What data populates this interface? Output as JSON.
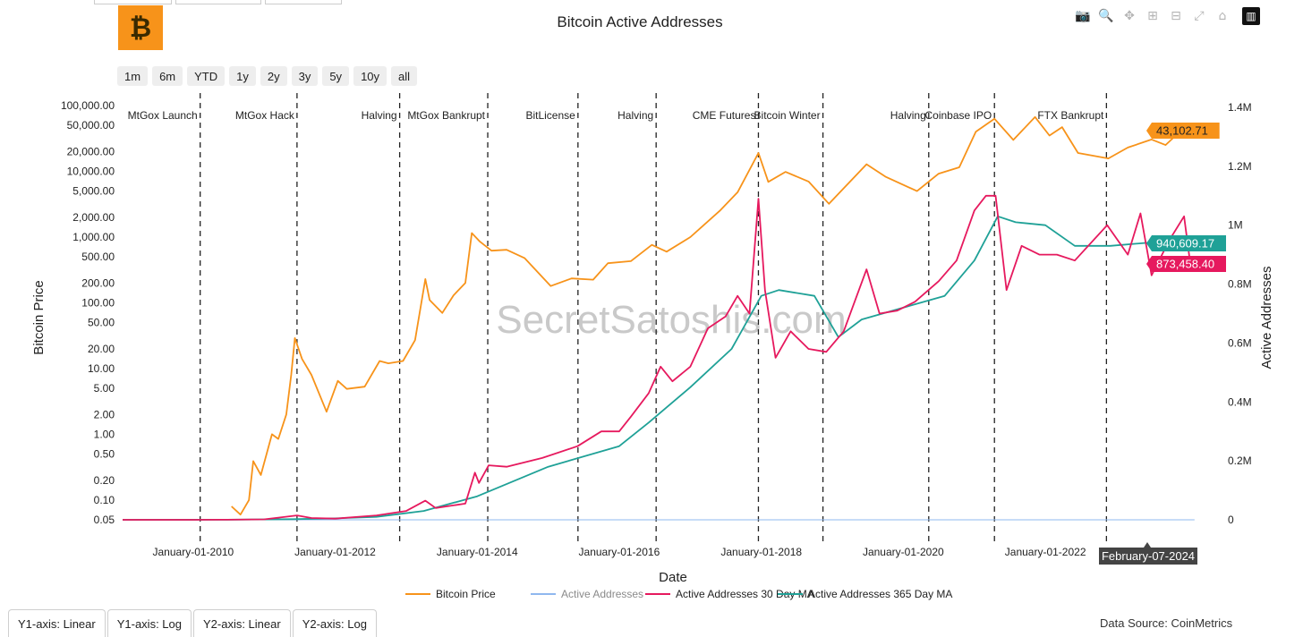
{
  "title": "Bitcoin Active Addresses",
  "logo_glyph": "₿",
  "modebar": {
    "icons": [
      "camera-icon",
      "zoom-icon",
      "pan-icon",
      "zoom-in-icon",
      "zoom-out-icon",
      "autoscale-icon",
      "home-icon",
      "plotly-logo-icon"
    ],
    "glyphs": [
      "📷",
      "🔍",
      "✥",
      "⊞",
      "⊟",
      "⤢",
      "⌂",
      "▥"
    ]
  },
  "range_buttons": [
    "1m",
    "6m",
    "YTD",
    "1y",
    "2y",
    "3y",
    "5y",
    "10y",
    "all"
  ],
  "axis_buttons": [
    "Y1-axis: Linear",
    "Y1-axis: Log",
    "Y2-axis: Linear",
    "Y2-axis: Log"
  ],
  "source": "Data Source: CoinMetrics",
  "watermark": "SecretSatoshis.com",
  "colors": {
    "price": "#f7931a",
    "active": "#8fb8ef",
    "ma30": "#e6195e",
    "ma365": "#1fa197"
  },
  "chart_data": {
    "type": "line",
    "xlabel": "Date",
    "ylabel": "Bitcoin Price",
    "y2label": "Active Addresses",
    "x_range": [
      "2009-01-03",
      "2024-03-25"
    ],
    "y_scale": "log",
    "y_range": [
      0.05,
      100000
    ],
    "y2_range": [
      0,
      1400000
    ],
    "x_ticks": [
      {
        "date": "2010-01-01",
        "label": "January-01-2010"
      },
      {
        "date": "2012-01-01",
        "label": "January-01-2012"
      },
      {
        "date": "2014-01-01",
        "label": "January-01-2014"
      },
      {
        "date": "2016-01-01",
        "label": "January-01-2016"
      },
      {
        "date": "2018-01-01",
        "label": "January-01-2018"
      },
      {
        "date": "2020-01-01",
        "label": "January-01-2020"
      },
      {
        "date": "2022-01-01",
        "label": "January-01-2022"
      }
    ],
    "y_ticks": [
      {
        "value": 100000,
        "label": "100,000.00"
      },
      {
        "value": 50000,
        "label": "50,000.00"
      },
      {
        "value": 20000,
        "label": "20,000.00"
      },
      {
        "value": 10000,
        "label": "10,000.00"
      },
      {
        "value": 5000,
        "label": "5,000.00"
      },
      {
        "value": 2000,
        "label": "2,000.00"
      },
      {
        "value": 1000,
        "label": "1,000.00"
      },
      {
        "value": 500,
        "label": "500.00"
      },
      {
        "value": 200,
        "label": "200.00"
      },
      {
        "value": 100,
        "label": "100.00"
      },
      {
        "value": 50,
        "label": "50.00"
      },
      {
        "value": 20,
        "label": "20.00"
      },
      {
        "value": 10,
        "label": "10.00"
      },
      {
        "value": 5,
        "label": "5.00"
      },
      {
        "value": 2,
        "label": "2.00"
      },
      {
        "value": 1,
        "label": "1.00"
      },
      {
        "value": 0.5,
        "label": "0.50"
      },
      {
        "value": 0.2,
        "label": "0.20"
      },
      {
        "value": 0.1,
        "label": "0.10"
      },
      {
        "value": 0.05,
        "label": "0.05"
      }
    ],
    "y2_ticks": [
      {
        "value": 1400000,
        "label": "1.4M"
      },
      {
        "value": 1200000,
        "label": "1.2M"
      },
      {
        "value": 1000000,
        "label": "1M"
      },
      {
        "value": 800000,
        "label": "0.8M"
      },
      {
        "value": 600000,
        "label": "0.6M"
      },
      {
        "value": 400000,
        "label": "0.4M"
      },
      {
        "value": 200000,
        "label": "0.2M"
      },
      {
        "value": 0,
        "label": "0"
      }
    ],
    "events": [
      {
        "date": "2010-02-06",
        "label": "MtGox Launch"
      },
      {
        "date": "2011-06-19",
        "label": "MtGox Hack"
      },
      {
        "date": "2012-11-28",
        "label": "Halving"
      },
      {
        "date": "2014-02-24",
        "label": "MtGox Bankrupt"
      },
      {
        "date": "2015-06-03",
        "label": "BitLicense"
      },
      {
        "date": "2016-07-09",
        "label": "Halving"
      },
      {
        "date": "2017-12-17",
        "label": "CME Futures"
      },
      {
        "date": "2018-11-14",
        "label": "Bitcoin Winter"
      },
      {
        "date": "2020-05-11",
        "label": "Halving"
      },
      {
        "date": "2021-04-14",
        "label": "Coinbase IPO"
      },
      {
        "date": "2022-11-11",
        "label": "FTX Bankrupt"
      }
    ],
    "hover_date_label": "February-07-2024",
    "last_value_labels": {
      "price": "43,102.71",
      "ma365": "940,609.17",
      "ma30": "873,458.40"
    },
    "legend_position": "bottom",
    "series": [
      {
        "name": "Bitcoin Price",
        "key": "price",
        "axis": "y",
        "points": [
          [
            "2010-07-17",
            0.08
          ],
          [
            "2010-09-01",
            0.06
          ],
          [
            "2010-10-15",
            0.1
          ],
          [
            "2010-11-06",
            0.39
          ],
          [
            "2010-12-15",
            0.24
          ],
          [
            "2011-02-10",
            1.0
          ],
          [
            "2011-03-15",
            0.85
          ],
          [
            "2011-04-25",
            2.0
          ],
          [
            "2011-05-20",
            8.0
          ],
          [
            "2011-06-08",
            29.0
          ],
          [
            "2011-07-15",
            14.0
          ],
          [
            "2011-09-01",
            8.0
          ],
          [
            "2011-11-18",
            2.2
          ],
          [
            "2012-01-15",
            6.5
          ],
          [
            "2012-03-01",
            4.9
          ],
          [
            "2012-06-01",
            5.3
          ],
          [
            "2012-08-17",
            13.0
          ],
          [
            "2012-10-01",
            12.0
          ],
          [
            "2012-12-15",
            13.0
          ],
          [
            "2013-02-15",
            27.0
          ],
          [
            "2013-04-09",
            230.0
          ],
          [
            "2013-05-01",
            110.0
          ],
          [
            "2013-07-05",
            70.0
          ],
          [
            "2013-09-01",
            130.0
          ],
          [
            "2013-11-01",
            200.0
          ],
          [
            "2013-12-04",
            1150.0
          ],
          [
            "2014-01-15",
            850.0
          ],
          [
            "2014-03-15",
            620.0
          ],
          [
            "2014-06-01",
            640.0
          ],
          [
            "2014-09-01",
            480.0
          ],
          [
            "2015-01-14",
            180.0
          ],
          [
            "2015-05-01",
            235.0
          ],
          [
            "2015-08-20",
            225.0
          ],
          [
            "2015-11-04",
            400.0
          ],
          [
            "2016-03-01",
            430.0
          ],
          [
            "2016-06-17",
            760.0
          ],
          [
            "2016-09-01",
            600.0
          ],
          [
            "2017-01-01",
            1000.0
          ],
          [
            "2017-06-01",
            2500.0
          ],
          [
            "2017-09-01",
            4800.0
          ],
          [
            "2017-12-17",
            19000.0
          ],
          [
            "2018-02-06",
            6900.0
          ],
          [
            "2018-05-05",
            9800.0
          ],
          [
            "2018-09-01",
            7000.0
          ],
          [
            "2018-12-15",
            3200.0
          ],
          [
            "2019-06-26",
            12800.0
          ],
          [
            "2019-10-01",
            8300.0
          ],
          [
            "2020-03-12",
            5000.0
          ],
          [
            "2020-07-01",
            9200.0
          ],
          [
            "2020-10-15",
            11500.0
          ],
          [
            "2021-01-08",
            40000.0
          ],
          [
            "2021-04-14",
            63000.0
          ],
          [
            "2021-07-20",
            30000.0
          ],
          [
            "2021-11-09",
            67000.0
          ],
          [
            "2022-01-22",
            35000.0
          ],
          [
            "2022-03-28",
            47000.0
          ],
          [
            "2022-06-18",
            19000.0
          ],
          [
            "2022-11-21",
            15700.0
          ],
          [
            "2023-03-01",
            23000.0
          ],
          [
            "2023-07-01",
            30500.0
          ],
          [
            "2023-09-11",
            25100.0
          ],
          [
            "2023-12-05",
            43000.0
          ],
          [
            "2024-02-07",
            43102.71
          ]
        ]
      },
      {
        "name": "Active Addresses",
        "key": "active",
        "axis": "y2",
        "points": [
          [
            "2009-01-03",
            0
          ],
          [
            "2024-02-07",
            0
          ]
        ]
      },
      {
        "name": "Active Addresses 30 Day MA",
        "key": "ma30",
        "axis": "y2",
        "points": [
          [
            "2009-01-03",
            0
          ],
          [
            "2010-01-01",
            0
          ],
          [
            "2010-06-01",
            200
          ],
          [
            "2011-01-01",
            1500
          ],
          [
            "2011-06-19",
            15000
          ],
          [
            "2011-09-01",
            6000
          ],
          [
            "2012-01-01",
            4000
          ],
          [
            "2012-08-01",
            15000
          ],
          [
            "2013-01-01",
            30000
          ],
          [
            "2013-04-09",
            65000
          ],
          [
            "2013-06-01",
            40000
          ],
          [
            "2013-11-01",
            55000
          ],
          [
            "2013-12-20",
            160000
          ],
          [
            "2014-01-10",
            125000
          ],
          [
            "2014-03-01",
            185000
          ],
          [
            "2014-06-01",
            180000
          ],
          [
            "2014-12-01",
            210000
          ],
          [
            "2015-06-01",
            250000
          ],
          [
            "2015-10-01",
            300000
          ],
          [
            "2016-01-01",
            300000
          ],
          [
            "2016-03-01",
            350000
          ],
          [
            "2016-06-01",
            430000
          ],
          [
            "2016-08-01",
            520000
          ],
          [
            "2016-10-01",
            470000
          ],
          [
            "2017-01-01",
            520000
          ],
          [
            "2017-04-01",
            650000
          ],
          [
            "2017-07-01",
            690000
          ],
          [
            "2017-09-01",
            760000
          ],
          [
            "2017-11-01",
            700000
          ],
          [
            "2017-12-17",
            1090000
          ],
          [
            "2018-01-20",
            780000
          ],
          [
            "2018-03-15",
            550000
          ],
          [
            "2018-06-01",
            640000
          ],
          [
            "2018-09-01",
            580000
          ],
          [
            "2018-12-01",
            570000
          ],
          [
            "2019-03-01",
            640000
          ],
          [
            "2019-06-26",
            850000
          ],
          [
            "2019-09-01",
            700000
          ],
          [
            "2019-12-01",
            710000
          ],
          [
            "2020-03-01",
            740000
          ],
          [
            "2020-07-01",
            810000
          ],
          [
            "2020-10-01",
            880000
          ],
          [
            "2021-01-01",
            1050000
          ],
          [
            "2021-03-01",
            1100000
          ],
          [
            "2021-04-20",
            1100000
          ],
          [
            "2021-06-15",
            780000
          ],
          [
            "2021-09-01",
            930000
          ],
          [
            "2021-12-01",
            900000
          ],
          [
            "2022-03-01",
            900000
          ],
          [
            "2022-06-01",
            880000
          ],
          [
            "2022-11-15",
            1000000
          ],
          [
            "2023-03-01",
            900000
          ],
          [
            "2023-05-05",
            1040000
          ],
          [
            "2023-07-01",
            830000
          ],
          [
            "2023-10-01",
            950000
          ],
          [
            "2023-12-15",
            1030000
          ],
          [
            "2024-01-20",
            850000
          ],
          [
            "2024-02-07",
            873458.4
          ]
        ]
      },
      {
        "name": "Active Addresses 365 Day MA",
        "key": "ma365",
        "axis": "y2",
        "points": [
          [
            "2009-01-03",
            0
          ],
          [
            "2010-06-01",
            200
          ],
          [
            "2011-06-01",
            2000
          ],
          [
            "2012-01-01",
            5000
          ],
          [
            "2012-08-01",
            10000
          ],
          [
            "2013-04-01",
            30000
          ],
          [
            "2014-01-01",
            80000
          ],
          [
            "2015-01-01",
            180000
          ],
          [
            "2016-01-01",
            250000
          ],
          [
            "2016-06-01",
            330000
          ],
          [
            "2017-01-01",
            450000
          ],
          [
            "2017-08-01",
            580000
          ],
          [
            "2018-01-01",
            760000
          ],
          [
            "2018-04-01",
            780000
          ],
          [
            "2018-10-01",
            760000
          ],
          [
            "2019-02-01",
            620000
          ],
          [
            "2019-06-01",
            680000
          ],
          [
            "2020-01-01",
            720000
          ],
          [
            "2020-08-01",
            760000
          ],
          [
            "2021-01-01",
            880000
          ],
          [
            "2021-05-01",
            1030000
          ],
          [
            "2021-08-01",
            1010000
          ],
          [
            "2022-01-01",
            1000000
          ],
          [
            "2022-06-01",
            930000
          ],
          [
            "2022-12-01",
            930000
          ],
          [
            "2023-06-01",
            940000
          ],
          [
            "2023-12-01",
            950000
          ],
          [
            "2024-02-07",
            940609.17
          ]
        ]
      }
    ]
  }
}
